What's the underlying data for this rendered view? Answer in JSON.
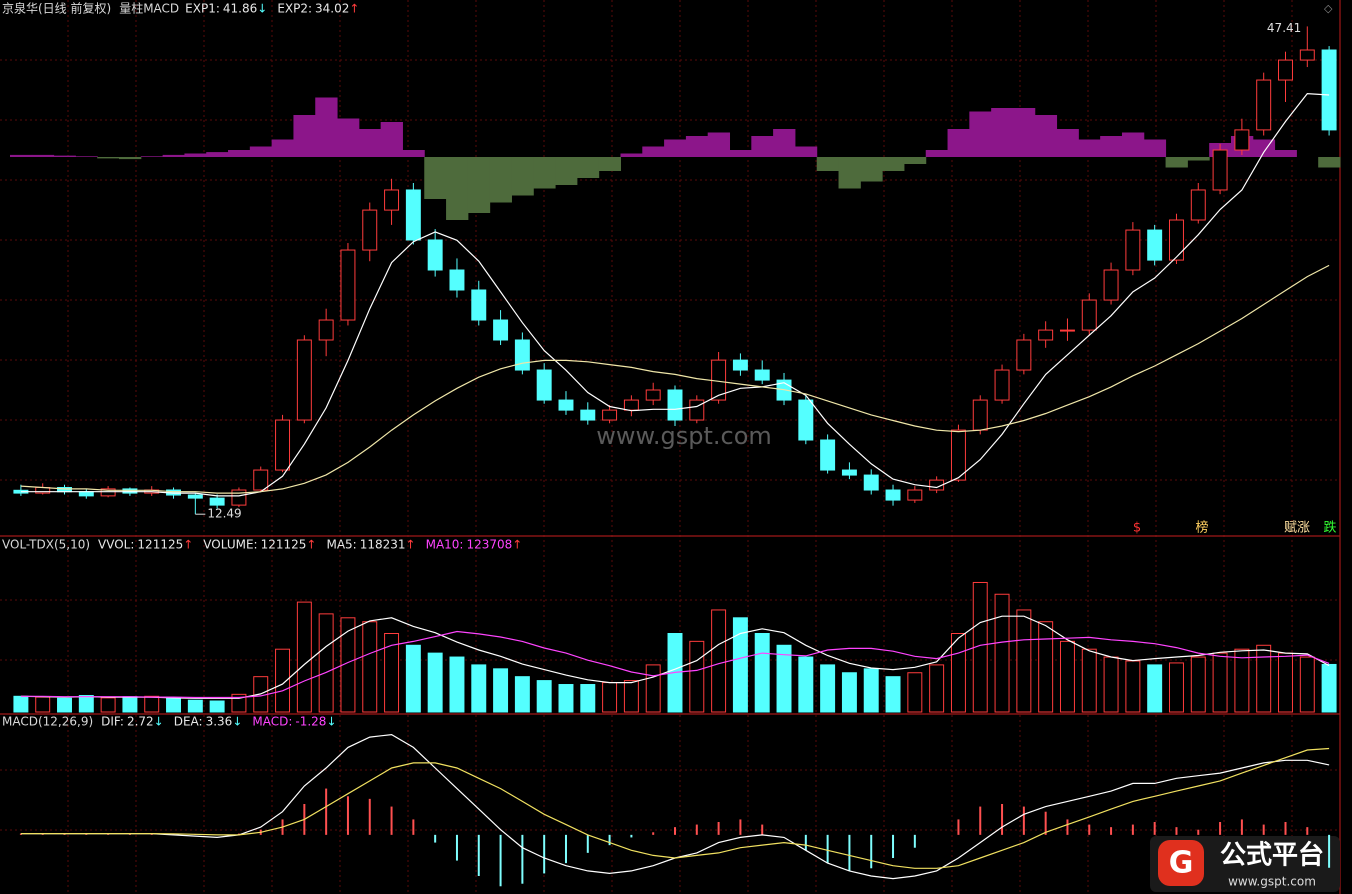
{
  "chart_data": [
    {
      "type": "candlestick",
      "title": "京泉华(日线 前复权)",
      "indicator": "量柱MACD",
      "readouts": [
        {
          "label": "EXP1:",
          "value": 41.86,
          "arrow": "↓"
        },
        {
          "label": "EXP2:",
          "value": 34.02,
          "arrow": "↑"
        }
      ],
      "up_color": "#ff3c3c",
      "down_color": "#54ffff",
      "ylim": [
        11,
        49.3
      ],
      "candles": [
        [
          14.2,
          14.6,
          13.8,
          14.0
        ],
        [
          14.0,
          14.7,
          13.9,
          14.4
        ],
        [
          14.4,
          14.6,
          13.9,
          14.1
        ],
        [
          14.1,
          14.3,
          13.6,
          13.8
        ],
        [
          13.8,
          14.5,
          13.7,
          14.3
        ],
        [
          14.3,
          14.4,
          13.8,
          14.0
        ],
        [
          14.0,
          14.5,
          13.8,
          14.22
        ],
        [
          14.22,
          14.4,
          13.6,
          13.86
        ],
        [
          13.86,
          14.0,
          12.49,
          13.64
        ],
        [
          13.64,
          13.9,
          12.9,
          13.14
        ],
        [
          13.14,
          14.4,
          13.0,
          14.22
        ],
        [
          14.22,
          15.9,
          14.1,
          15.65
        ],
        [
          15.65,
          19.6,
          15.5,
          19.23
        ],
        [
          19.23,
          25.3,
          19.0,
          24.96
        ],
        [
          24.96,
          27.2,
          23.8,
          26.39
        ],
        [
          26.39,
          31.9,
          26.0,
          31.4
        ],
        [
          31.4,
          34.8,
          30.6,
          34.26
        ],
        [
          34.26,
          36.5,
          33.2,
          35.7
        ],
        [
          35.7,
          36.2,
          31.8,
          32.12
        ],
        [
          32.12,
          32.9,
          29.5,
          29.97
        ],
        [
          29.97,
          30.8,
          28.0,
          28.54
        ],
        [
          28.54,
          29.2,
          26.0,
          26.39
        ],
        [
          26.39,
          27.1,
          24.6,
          24.96
        ],
        [
          24.96,
          25.5,
          22.5,
          22.81
        ],
        [
          22.81,
          23.3,
          20.4,
          20.66
        ],
        [
          20.66,
          21.3,
          19.6,
          19.94
        ],
        [
          19.94,
          20.5,
          18.9,
          19.23
        ],
        [
          19.23,
          20.3,
          19.0,
          19.94
        ],
        [
          19.94,
          21.0,
          19.5,
          20.66
        ],
        [
          20.66,
          21.9,
          20.3,
          21.38
        ],
        [
          21.38,
          21.7,
          18.8,
          19.23
        ],
        [
          19.23,
          21.0,
          19.0,
          20.66
        ],
        [
          20.66,
          24.1,
          20.4,
          23.52
        ],
        [
          23.52,
          24.0,
          22.4,
          22.81
        ],
        [
          22.81,
          23.5,
          21.8,
          22.09
        ],
        [
          22.09,
          22.6,
          20.3,
          20.66
        ],
        [
          20.66,
          21.0,
          17.5,
          17.8
        ],
        [
          17.8,
          18.2,
          15.4,
          15.65
        ],
        [
          15.65,
          16.2,
          15.0,
          15.29
        ],
        [
          15.29,
          15.7,
          13.9,
          14.22
        ],
        [
          14.22,
          14.6,
          13.1,
          13.5
        ],
        [
          13.5,
          14.5,
          13.3,
          14.22
        ],
        [
          14.22,
          15.2,
          14.0,
          14.93
        ],
        [
          14.93,
          18.9,
          14.8,
          18.51
        ],
        [
          18.51,
          21.0,
          18.2,
          20.66
        ],
        [
          20.66,
          23.2,
          20.4,
          22.81
        ],
        [
          22.81,
          25.4,
          22.5,
          24.96
        ],
        [
          24.96,
          26.3,
          24.4,
          25.67
        ],
        [
          25.67,
          26.5,
          24.9,
          25.67
        ],
        [
          25.67,
          28.3,
          25.3,
          27.82
        ],
        [
          27.82,
          30.5,
          27.5,
          29.97
        ],
        [
          29.97,
          33.4,
          29.6,
          32.83
        ],
        [
          32.83,
          33.2,
          30.3,
          30.68
        ],
        [
          30.68,
          34.0,
          30.4,
          33.55
        ],
        [
          33.55,
          36.2,
          33.3,
          35.7
        ],
        [
          35.7,
          39.0,
          35.4,
          38.56
        ],
        [
          38.56,
          40.8,
          38.2,
          40.0
        ],
        [
          40.0,
          44.1,
          39.6,
          43.57
        ],
        [
          43.57,
          45.6,
          42.0,
          45.0
        ],
        [
          45.0,
          47.41,
          44.5,
          45.72
        ],
        [
          45.72,
          46.0,
          39.6,
          40.0
        ]
      ],
      "lines": [
        {
          "color": "#ffffff",
          "values": [
            14.1,
            14.1,
            14.1,
            14.1,
            14.1,
            14.1,
            14.1,
            14.0,
            14.0,
            13.8,
            13.8,
            14.1,
            15.2,
            17.5,
            20.1,
            23.5,
            27.2,
            30.5,
            32.0,
            32.7,
            32.1,
            30.6,
            28.4,
            26.2,
            24.2,
            22.8,
            21.2,
            20.2,
            19.9,
            20.0,
            20.0,
            20.2,
            21.0,
            21.5,
            21.6,
            21.9,
            21.0,
            19.0,
            17.5,
            16.1,
            15.0,
            14.6,
            14.4,
            15.1,
            16.4,
            18.2,
            20.4,
            22.5,
            23.9,
            25.3,
            26.7,
            28.4,
            29.4,
            30.9,
            32.5,
            34.3,
            35.7,
            38.4,
            40.6,
            42.6,
            42.5
          ]
        },
        {
          "color": "#efe6a8",
          "values": [
            14.5,
            14.4,
            14.3,
            14.3,
            14.2,
            14.2,
            14.2,
            14.1,
            14.1,
            14.0,
            14.0,
            14.1,
            14.3,
            14.7,
            15.3,
            16.2,
            17.3,
            18.5,
            19.6,
            20.6,
            21.5,
            22.3,
            22.9,
            23.3,
            23.5,
            23.5,
            23.4,
            23.2,
            23.0,
            22.7,
            22.5,
            22.2,
            22.0,
            21.8,
            21.6,
            21.4,
            21.1,
            20.6,
            20.1,
            19.6,
            19.2,
            18.8,
            18.5,
            18.4,
            18.5,
            18.8,
            19.2,
            19.7,
            20.3,
            20.9,
            21.6,
            22.4,
            23.1,
            23.9,
            24.7,
            25.6,
            26.5,
            27.5,
            28.5,
            29.5,
            30.3
          ]
        }
      ],
      "oscillator": {
        "pos_color": "#8c168a",
        "neg_color": "#4e6b3c",
        "ylim": [
          -10,
          10
        ],
        "values": [
          0.3,
          0.3,
          0.2,
          0.1,
          -0.2,
          -0.3,
          0.1,
          0.3,
          0.5,
          0.7,
          1.0,
          1.5,
          2.5,
          6.0,
          8.5,
          5.5,
          4.0,
          5.0,
          1.0,
          -6.0,
          -9.0,
          -8.0,
          -6.5,
          -5.5,
          -4.5,
          -4.0,
          -3.0,
          -2.0,
          0.5,
          1.5,
          2.5,
          3.0,
          3.5,
          1.0,
          3.0,
          4.0,
          1.5,
          -2.0,
          -4.5,
          -3.5,
          -2.0,
          -1.0,
          1.0,
          4.0,
          6.5,
          7.0,
          7.0,
          6.0,
          4.0,
          2.5,
          3.0,
          3.5,
          2.5,
          -1.5,
          -0.5,
          2.0,
          3.0,
          2.5,
          1.0,
          0.0,
          -1.5
        ]
      },
      "signals": [
        {
          "text": "$",
          "color": "#ff3333"
        },
        {
          "text": "榜",
          "color": "#ffd060"
        },
        {
          "text": "赋涨",
          "color": "#ffe0a0"
        },
        {
          "text": "跌",
          "color": "#33ff33"
        }
      ]
    },
    {
      "type": "bar",
      "title": "VOL-TDX(5,10)",
      "readouts": [
        {
          "label": "VVOL:",
          "value": 121125,
          "arrow": "↑"
        },
        {
          "label": "VOLUME:",
          "value": 121125,
          "arrow": "↑"
        },
        {
          "label": "MA5:",
          "value": 118231,
          "arrow": "↑"
        },
        {
          "label": "MA10:",
          "value": 123708,
          "arrow": "↑",
          "color": "#ff44ff"
        }
      ],
      "ylim": [
        0,
        400000
      ],
      "values": [
        40000,
        38000,
        35000,
        42000,
        36000,
        39000,
        40000,
        35000,
        30000,
        28000,
        45000,
        90000,
        160000,
        280000,
        250000,
        240000,
        230000,
        200000,
        170000,
        150000,
        140000,
        120000,
        110000,
        90000,
        80000,
        70000,
        70000,
        75000,
        80000,
        120000,
        200000,
        180000,
        260000,
        240000,
        200000,
        170000,
        140000,
        120000,
        100000,
        110000,
        90000,
        100000,
        120000,
        200000,
        330000,
        300000,
        260000,
        230000,
        180000,
        160000,
        140000,
        130000,
        120000,
        125000,
        140000,
        150000,
        160000,
        170000,
        150000,
        140000,
        121125
      ],
      "lines": [
        {
          "color": "#ffffff",
          "values": [
            40000,
            39000,
            38000,
            39000,
            38000,
            38000,
            38000,
            36000,
            35000,
            35000,
            35000,
            46000,
            71000,
            121000,
            167000,
            206000,
            232000,
            240000,
            218000,
            202000,
            178000,
            158000,
            142000,
            122000,
            108000,
            94000,
            82000,
            75000,
            75000,
            89000,
            109000,
            131000,
            172000,
            200000,
            212000,
            202000,
            170000,
            144000,
            124000,
            112000,
            108000,
            114000,
            128000,
            188000,
            228000,
            244000,
            244000,
            220000,
            184000,
            156000,
            140000,
            131000,
            136000,
            140000,
            144000,
            152000,
            156000,
            158000,
            150000,
            148000,
            118231
          ]
        },
        {
          "color": "#ff44ff",
          "values": [
            40000,
            40000,
            39000,
            39000,
            39000,
            39000,
            38000,
            38000,
            37000,
            37000,
            37000,
            41000,
            54000,
            79000,
            101000,
            126000,
            149000,
            170000,
            180000,
            192000,
            205000,
            199000,
            191000,
            180000,
            163000,
            150000,
            132000,
            118000,
            102000,
            92000,
            101000,
            106000,
            123000,
            137000,
            150000,
            146000,
            143000,
            158000,
            162000,
            162000,
            155000,
            142000,
            136000,
            150000,
            170000,
            178000,
            184000,
            186000,
            188000,
            190000,
            184000,
            180000,
            174000,
            164000,
            150000,
            142000,
            138000,
            140000,
            142000,
            145000,
            123708
          ]
        }
      ]
    },
    {
      "type": "macd",
      "title": "MACD(12,26,9)",
      "readouts": [
        {
          "label": "DIF:",
          "value": 2.72,
          "arrow": "↓"
        },
        {
          "label": "DEA:",
          "value": 3.36,
          "arrow": "↓"
        },
        {
          "label": "MACD:",
          "value": -1.28,
          "arrow": "↓",
          "color": "#ff44ff"
        }
      ],
      "ylim": [
        -2.3,
        4.7
      ],
      "values": [
        0.05,
        0.05,
        0.04,
        0.05,
        0.03,
        0.04,
        0.05,
        0.03,
        0.02,
        0.0,
        0.05,
        0.2,
        0.6,
        1.2,
        1.8,
        1.5,
        1.4,
        1.1,
        0.6,
        -0.3,
        -1.0,
        -1.6,
        -2.0,
        -1.9,
        -1.5,
        -1.1,
        -0.7,
        -0.4,
        -0.1,
        0.1,
        0.3,
        0.4,
        0.5,
        0.6,
        0.4,
        0.0,
        -0.6,
        -1.1,
        -1.4,
        -1.3,
        -0.9,
        -0.5,
        0.0,
        0.6,
        1.1,
        1.2,
        1.1,
        0.9,
        0.6,
        0.4,
        0.3,
        0.4,
        0.5,
        0.3,
        0.2,
        0.5,
        0.6,
        0.4,
        0.5,
        0.3,
        -1.28
      ],
      "lines": [
        {
          "color": "#ffffff",
          "values": [
            0.05,
            0.05,
            0.05,
            0.05,
            0.05,
            0.05,
            0.05,
            0.0,
            -0.05,
            -0.1,
            0.0,
            0.3,
            0.9,
            1.9,
            2.6,
            3.4,
            3.8,
            3.9,
            3.4,
            2.6,
            1.8,
            1.0,
            0.2,
            -0.5,
            -0.9,
            -1.2,
            -1.4,
            -1.5,
            -1.4,
            -1.2,
            -0.9,
            -0.7,
            -0.3,
            -0.1,
            0.0,
            -0.1,
            -0.6,
            -1.1,
            -1.4,
            -1.6,
            -1.7,
            -1.6,
            -1.4,
            -0.9,
            -0.3,
            0.3,
            0.8,
            1.1,
            1.3,
            1.5,
            1.7,
            2.0,
            2.0,
            2.2,
            2.3,
            2.4,
            2.6,
            2.8,
            2.9,
            2.9,
            2.72
          ]
        },
        {
          "color": "#f0e060",
          "values": [
            0.05,
            0.05,
            0.05,
            0.05,
            0.05,
            0.05,
            0.05,
            0.04,
            0.02,
            0.0,
            0.0,
            0.1,
            0.3,
            0.6,
            1.1,
            1.6,
            2.1,
            2.6,
            2.8,
            2.8,
            2.6,
            2.2,
            1.8,
            1.3,
            0.8,
            0.4,
            0.0,
            -0.3,
            -0.6,
            -0.8,
            -0.9,
            -0.8,
            -0.7,
            -0.5,
            -0.4,
            -0.3,
            -0.4,
            -0.6,
            -0.8,
            -1.0,
            -1.2,
            -1.3,
            -1.3,
            -1.2,
            -0.9,
            -0.6,
            -0.3,
            0.1,
            0.4,
            0.7,
            1.0,
            1.3,
            1.5,
            1.7,
            1.9,
            2.1,
            2.4,
            2.7,
            3.0,
            3.3,
            3.36
          ]
        }
      ]
    }
  ],
  "watermark": {
    "center": "www.gspt.com",
    "logo": "公式平台",
    "logo_url": "www.gspt.com"
  }
}
